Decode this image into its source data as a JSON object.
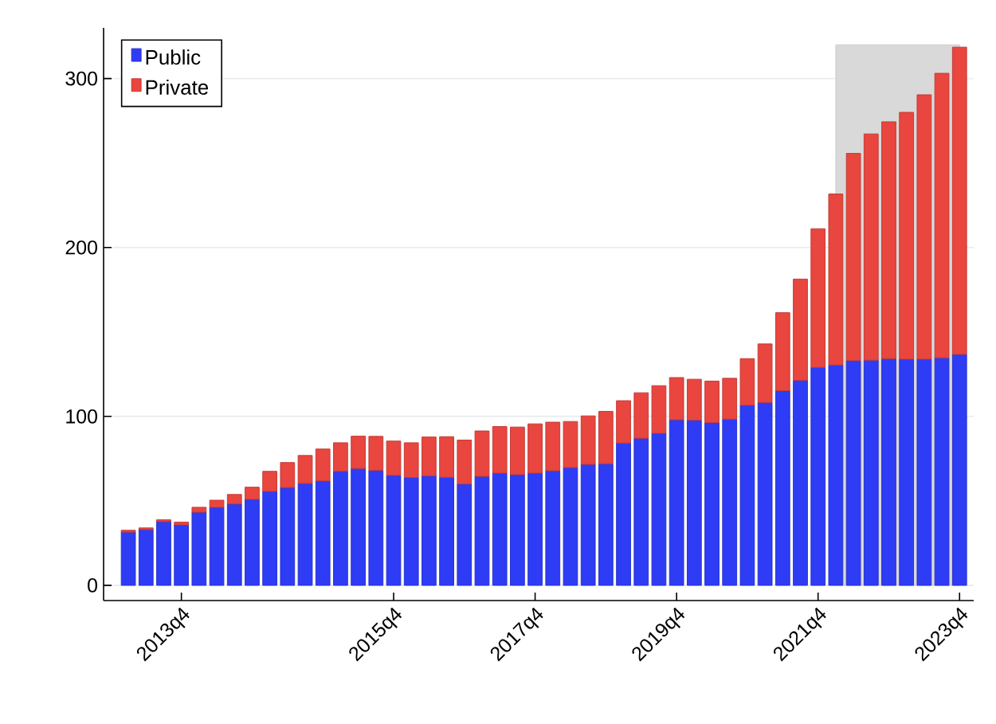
{
  "chart_data": {
    "type": "bar",
    "stacked": true,
    "categories": [
      null,
      null,
      null,
      "2013q4",
      null,
      null,
      null,
      null,
      null,
      null,
      null,
      null,
      null,
      null,
      null,
      "2015q4",
      null,
      null,
      null,
      null,
      null,
      null,
      null,
      "2017q4",
      null,
      null,
      null,
      null,
      null,
      null,
      null,
      "2019q4",
      null,
      null,
      null,
      null,
      null,
      null,
      null,
      "2021q4",
      null,
      null,
      null,
      null,
      null,
      null,
      null,
      "2023q4"
    ],
    "series": [
      {
        "name": "Public",
        "color": "#2e3cf5",
        "values": [
          31.5,
          33,
          37.7,
          35.8,
          43.3,
          46.2,
          48.2,
          50.9,
          55.6,
          57.9,
          60.3,
          61.8,
          67.5,
          69.2,
          68,
          65.1,
          63.8,
          64.8,
          64,
          60,
          64.5,
          66.4,
          65.5,
          66.4,
          67.8,
          69.7,
          71.6,
          72,
          84.3,
          87.1,
          90,
          98,
          97.8,
          96.3,
          98.4,
          106.6,
          108.3,
          115.2,
          121.4,
          129,
          130.5,
          133,
          133.3,
          134.2,
          133.9,
          133.9,
          134.7,
          136.7
        ]
      },
      {
        "name": "Private",
        "color": "#e8463f",
        "values": [
          1.1,
          1,
          1.1,
          1.6,
          2.9,
          4.2,
          5.6,
          7.2,
          11.9,
          14.8,
          16.6,
          18.9,
          16.9,
          19.1,
          20.2,
          20.3,
          20.6,
          23,
          24,
          26,
          26.9,
          27.6,
          28.2,
          29.2,
          28.8,
          27.3,
          28.7,
          31,
          25,
          26.9,
          28.2,
          25,
          24.2,
          24.6,
          24.2,
          27.6,
          34.6,
          46.2,
          59.9,
          82.1,
          101.2,
          122.7,
          133.9,
          140.2,
          146.1,
          156.5,
          168.4,
          181.9
        ]
      }
    ],
    "ylim": [
      -9,
      330
    ],
    "yticks": [
      0,
      100,
      200,
      300
    ],
    "grid": "y",
    "legend": "top left"
  }
}
